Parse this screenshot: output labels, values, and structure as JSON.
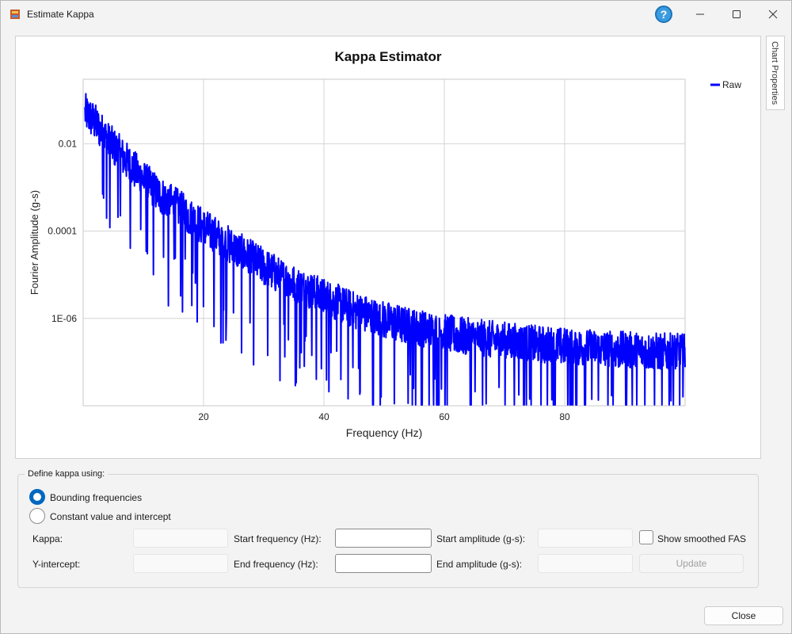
{
  "window": {
    "title": "Estimate Kappa",
    "help_label": "?"
  },
  "side_tab": {
    "label": "Chart Properties"
  },
  "chart_data": {
    "type": "line",
    "title": "Kappa Estimator",
    "xlabel": "Frequency (Hz)",
    "ylabel": "Fourier Amplitude (g-s)",
    "xlim": [
      0,
      100
    ],
    "ylim": [
      1e-08,
      0.3
    ],
    "y_scale": "log",
    "x_ticks": [
      20,
      40,
      60,
      80
    ],
    "x_tick_labels": [
      "20",
      "40",
      "60",
      "80"
    ],
    "y_ticks": [
      0.01,
      0.0001,
      1e-06
    ],
    "y_tick_labels": [
      "0.01",
      "0.0001",
      "1E-06"
    ],
    "grid": true,
    "legend_position": "top-right",
    "series": [
      {
        "name": "Raw",
        "color": "#0000ff",
        "x": [
          0.5,
          2,
          4,
          6,
          8,
          10,
          12,
          15,
          20,
          25,
          30,
          35,
          40,
          45,
          50,
          55,
          60,
          65,
          70,
          75,
          80,
          85,
          90,
          95,
          100
        ],
        "y": [
          0.05,
          0.03,
          0.012,
          0.006,
          0.003,
          0.0015,
          0.0008,
          0.0004,
          0.00012,
          4e-05,
          1.5e-05,
          6e-06,
          3e-06,
          1.5e-06,
          9e-07,
          6e-07,
          4.5e-07,
          3.5e-07,
          3e-07,
          2.5e-07,
          2.2e-07,
          2e-07,
          1.8e-07,
          1.7e-07,
          1.6e-07
        ]
      }
    ]
  },
  "form": {
    "group_label": "Define kappa using:",
    "radio_bounding": "Bounding frequencies",
    "radio_constant": "Constant value and intercept",
    "kappa_label": "Kappa:",
    "yintercept_label": "Y-intercept:",
    "start_freq_label": "Start frequency (Hz):",
    "end_freq_label": "End frequency (Hz):",
    "start_amp_label": "Start amplitude (g-s):",
    "end_amp_label": "End amplitude (g-s):",
    "show_smoothed_label": "Show smoothed FAS",
    "update_label": "Update"
  },
  "footer": {
    "close_label": "Close"
  },
  "colors": {
    "accent": "#0067c0",
    "series": "#0000ff",
    "help": "#3b9be0"
  }
}
